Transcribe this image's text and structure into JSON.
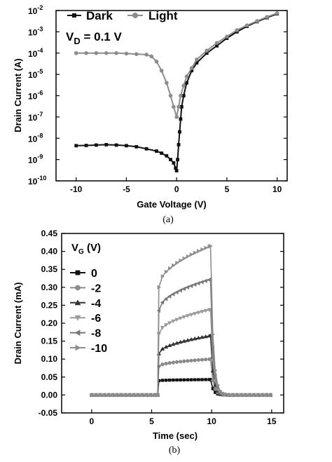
{
  "chart_data": [
    {
      "type": "line",
      "caption": "(a)",
      "xlabel": "Gate Voltage (V)",
      "ylabel": "Drain Current (A)",
      "annotation": {
        "label": "V",
        "sub": "D",
        "value": " = 0.1 V"
      },
      "xlim": [
        -12,
        11
      ],
      "ylim_exponent": [
        -10,
        -2
      ],
      "yscale": "log",
      "xticks": [
        "-10",
        "-5",
        "0",
        "5",
        "10"
      ],
      "yticks": [
        {
          "base": "10",
          "exp": "-2"
        },
        {
          "base": "10",
          "exp": "-3"
        },
        {
          "base": "10",
          "exp": "-4"
        },
        {
          "base": "10",
          "exp": "-5"
        },
        {
          "base": "10",
          "exp": "-6"
        },
        {
          "base": "10",
          "exp": "-7"
        },
        {
          "base": "10",
          "exp": "-8"
        },
        {
          "base": "10",
          "exp": "-9"
        },
        {
          "base": "10",
          "exp": "-10"
        }
      ],
      "legend_position": "top",
      "series": [
        {
          "name": "Dark",
          "color": "#111111",
          "marker": "square",
          "points": [
            [
              -10,
              4.5e-09
            ],
            [
              -9,
              4.6e-09
            ],
            [
              -8,
              4.8e-09
            ],
            [
              -7,
              5e-09
            ],
            [
              -6,
              4.8e-09
            ],
            [
              -5,
              4.5e-09
            ],
            [
              -4,
              4e-09
            ],
            [
              -3,
              3.2e-09
            ],
            [
              -2,
              2.5e-09
            ],
            [
              -1.5,
              2e-09
            ],
            [
              -1,
              1.5e-09
            ],
            [
              -0.6,
              1e-09
            ],
            [
              -0.3,
              7e-10
            ],
            [
              -0.1,
              4e-10
            ],
            [
              0,
              3e-10
            ],
            [
              0.1,
              1e-09
            ],
            [
              0.2,
              5e-09
            ],
            [
              0.3,
              2e-08
            ],
            [
              0.4,
              8e-08
            ],
            [
              0.5,
              3e-07
            ],
            [
              0.7,
              1e-06
            ],
            [
              1,
              4e-06
            ],
            [
              1.5,
              1.5e-05
            ],
            [
              2,
              3.5e-05
            ],
            [
              3,
              0.0001
            ],
            [
              4,
              0.00022
            ],
            [
              5,
              0.0005
            ],
            [
              6,
              0.001
            ],
            [
              7,
              0.0018
            ],
            [
              8,
              0.003
            ],
            [
              9,
              0.0046
            ],
            [
              10,
              0.007
            ]
          ]
        },
        {
          "name": "Light",
          "color": "#8c8c8c",
          "marker": "circle",
          "points": [
            [
              -10,
              0.0001
            ],
            [
              -9,
              0.0001
            ],
            [
              -8,
              0.0001
            ],
            [
              -7,
              0.0001
            ],
            [
              -6,
              0.0001
            ],
            [
              -5,
              9.5e-05
            ],
            [
              -4,
              9e-05
            ],
            [
              -3,
              8.5e-05
            ],
            [
              -2.5,
              7e-05
            ],
            [
              -2,
              4e-05
            ],
            [
              -1.5,
              1.5e-05
            ],
            [
              -1,
              4e-06
            ],
            [
              -0.6,
              1e-06
            ],
            [
              -0.3,
              3e-07
            ],
            [
              0,
              1e-07
            ],
            [
              0.2,
              3e-07
            ],
            [
              0.4,
              1e-06
            ],
            [
              0.7,
              3e-06
            ],
            [
              1,
              8e-06
            ],
            [
              1.5,
              2e-05
            ],
            [
              2,
              5e-05
            ],
            [
              3,
              0.00013
            ],
            [
              4,
              0.0003
            ],
            [
              5,
              0.0006
            ],
            [
              6,
              0.0012
            ],
            [
              7,
              0.002
            ],
            [
              8,
              0.0032
            ],
            [
              9,
              0.005
            ],
            [
              10,
              0.0075
            ]
          ]
        }
      ]
    },
    {
      "type": "line",
      "caption": "(b)",
      "xlabel": "Time (sec)",
      "ylabel": "Drain Current (mA)",
      "legend_title": {
        "label": "V",
        "sub": "G",
        "unit": " (V)"
      },
      "legend_position": "top-left",
      "xlim": [
        -2.5,
        16
      ],
      "ylim": [
        -0.05,
        0.45
      ],
      "xticks": [
        "0",
        "5",
        "10",
        "15"
      ],
      "yticks": [
        "0.45",
        "0.40",
        "0.35",
        "0.30",
        "0.25",
        "0.20",
        "0.15",
        "0.10",
        "0.05",
        "0.00",
        "-0.05"
      ],
      "on_time": 5.6,
      "off_time": 9.9,
      "series": [
        {
          "name": "0",
          "color": "#111111",
          "marker": "square",
          "plateau": [
            0.04,
            0.043
          ]
        },
        {
          "name": "-2",
          "color": "#8a8a8a",
          "marker": "circle",
          "plateau": [
            0.08,
            0.1
          ]
        },
        {
          "name": "-4",
          "color": "#333333",
          "marker": "triangle",
          "plateau": [
            0.115,
            0.165
          ]
        },
        {
          "name": "-6",
          "color": "#9a9a9a",
          "marker": "tri-down",
          "plateau": [
            0.17,
            0.238
          ]
        },
        {
          "name": "-8",
          "color": "#777777",
          "marker": "tri-left",
          "plateau": [
            0.235,
            0.322
          ]
        },
        {
          "name": "-10",
          "color": "#8e8e8e",
          "marker": "tri-right",
          "plateau": [
            0.3,
            0.415
          ]
        }
      ]
    }
  ]
}
